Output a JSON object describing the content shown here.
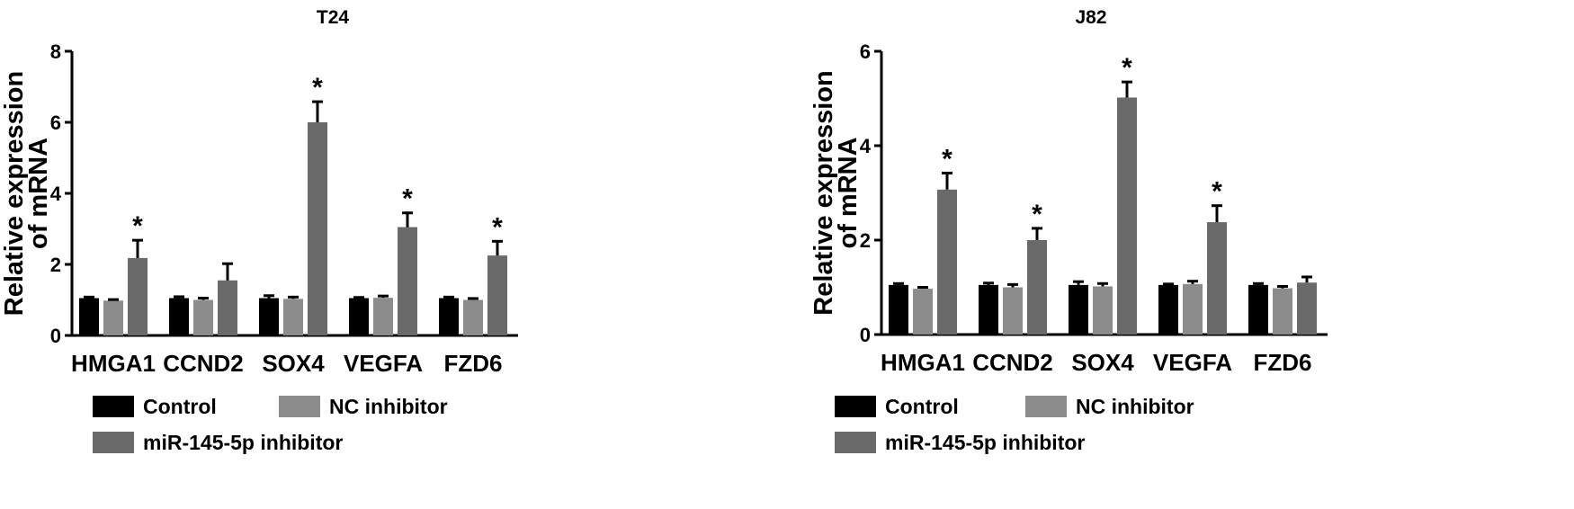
{
  "chart_data": [
    {
      "type": "bar",
      "title": "T24",
      "ylabel_lines": [
        "Relative expression",
        "of mRNA"
      ],
      "ylim": [
        0,
        8
      ],
      "yticks": [
        0,
        2,
        4,
        6,
        8
      ],
      "categories": [
        "HMGA1",
        "CCND2",
        "SOX4",
        "VEGFA",
        "FZD6"
      ],
      "series": [
        {
          "name": "Control",
          "color": "#000000",
          "values": [
            1.05,
            1.05,
            1.05,
            1.05,
            1.05
          ],
          "errors": [
            0.03,
            0.04,
            0.07,
            0.02,
            0.03
          ]
        },
        {
          "name": "NC inhibitor",
          "color": "#8c8c8c",
          "values": [
            0.98,
            1.0,
            1.03,
            1.06,
            1.0
          ],
          "errors": [
            0.03,
            0.05,
            0.05,
            0.05,
            0.04
          ]
        },
        {
          "name": "miR-145-5p inhibitor",
          "color": "#6a6a6a",
          "values": [
            2.18,
            1.55,
            6.0,
            3.05,
            2.25
          ],
          "errors": [
            0.5,
            0.47,
            0.58,
            0.4,
            0.4
          ]
        }
      ],
      "significance": [
        "*",
        "",
        "*",
        "*",
        "*"
      ],
      "grid": false,
      "legend": "bottom"
    },
    {
      "type": "bar",
      "title": "J82",
      "ylabel_lines": [
        "Relative expression",
        "of mRNA"
      ],
      "ylim": [
        0,
        6
      ],
      "yticks": [
        0,
        2,
        4,
        6
      ],
      "categories": [
        "HMGA1",
        "CCND2",
        "SOX4",
        "VEGFA",
        "FZD6"
      ],
      "series": [
        {
          "name": "Control",
          "color": "#000000",
          "values": [
            1.05,
            1.05,
            1.05,
            1.05,
            1.05
          ],
          "errors": [
            0.03,
            0.04,
            0.07,
            0.02,
            0.03
          ]
        },
        {
          "name": "NC inhibitor",
          "color": "#8c8c8c",
          "values": [
            0.97,
            1.0,
            1.02,
            1.07,
            0.98
          ],
          "errors": [
            0.03,
            0.06,
            0.06,
            0.06,
            0.04
          ]
        },
        {
          "name": "miR-145-5p inhibitor",
          "color": "#6a6a6a",
          "values": [
            3.07,
            2.0,
            5.02,
            2.38,
            1.1
          ],
          "errors": [
            0.35,
            0.25,
            0.33,
            0.35,
            0.12
          ]
        }
      ],
      "significance": [
        "*",
        "*",
        "*",
        "*",
        ""
      ],
      "grid": false,
      "legend": "bottom"
    }
  ]
}
